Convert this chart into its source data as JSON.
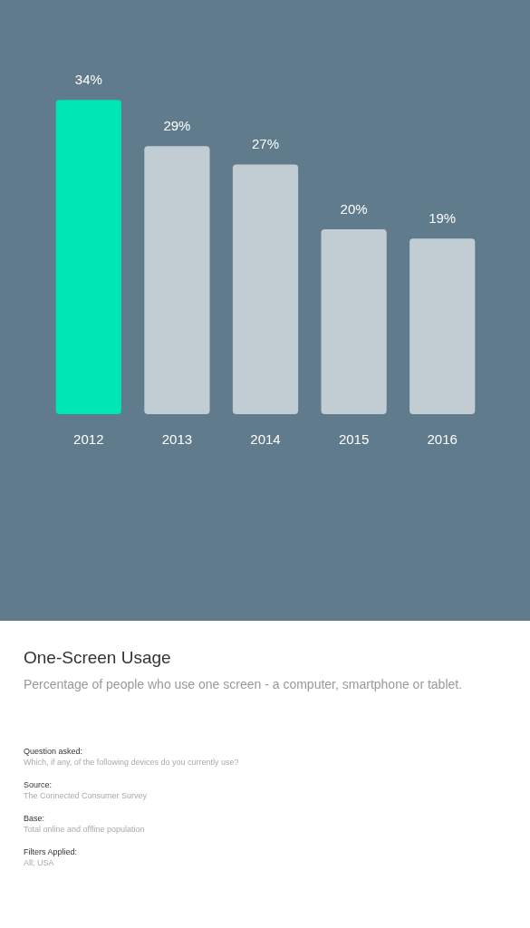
{
  "chart_data": {
    "type": "bar",
    "title": "One-Screen Usage",
    "subtitle": "Percentage of people who use one screen - a computer, smartphone or tablet.",
    "categories": [
      "2012",
      "2013",
      "2014",
      "2015",
      "2016"
    ],
    "values": [
      34,
      29,
      27,
      20,
      19
    ],
    "colors": [
      "#00e5b4",
      "#c1cdd3",
      "#c1cdd3",
      "#c1cdd3",
      "#c1cdd3"
    ],
    "value_labels": [
      "34%",
      "29%",
      "27%",
      "20%",
      "19%"
    ],
    "tick_labels": "x",
    "grid": false,
    "legend": false,
    "annotations": [
      "Question asked:",
      "Which, if any, of the following devices do you currently use?",
      "Source:",
      "The Connected Consumer Survey",
      "Base:",
      "Total online and offline population",
      "Filters Applied:",
      "All; USA"
    ]
  }
}
